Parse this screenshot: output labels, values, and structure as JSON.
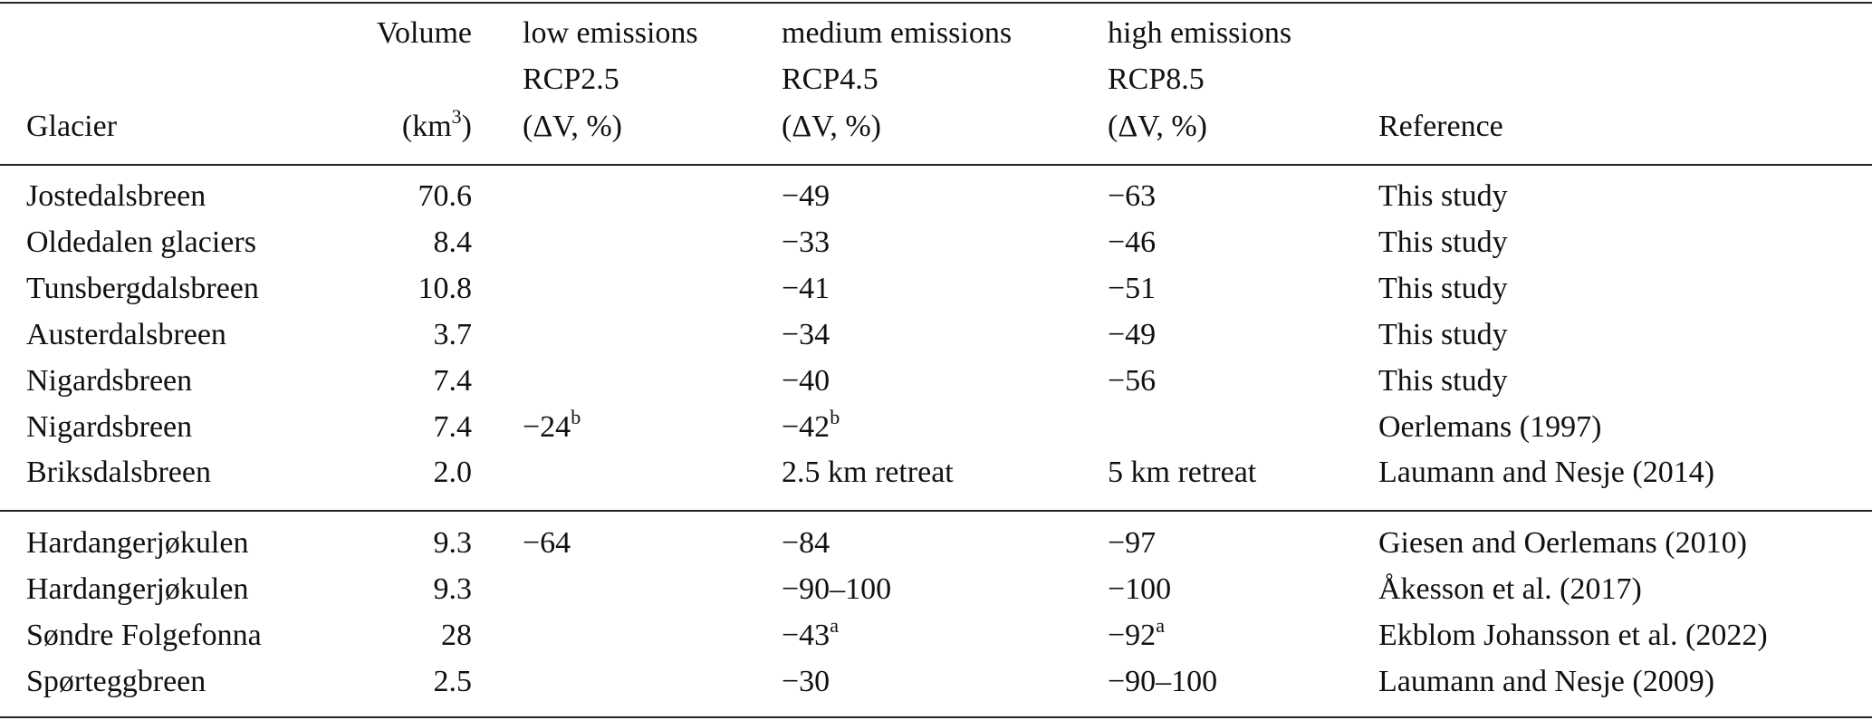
{
  "table": {
    "header": [
      [
        "Glacier"
      ],
      [
        "Volume",
        {
          "text": "(km",
          "sup": "3",
          "tail": ")"
        }
      ],
      [
        "low emissions",
        "RCP2.5",
        "(ΔV, %)"
      ],
      [
        "medium emissions",
        "RCP4.5",
        "(ΔV, %)"
      ],
      [
        "high emissions",
        "RCP8.5",
        "(ΔV, %)"
      ],
      [
        "Reference"
      ]
    ],
    "groups": [
      [
        [
          "Jostedalsbreen",
          "70.6",
          "",
          "−49",
          "−63",
          "This study"
        ],
        [
          "Oldedalen glaciers",
          "8.4",
          "",
          "−33",
          "−46",
          "This study"
        ],
        [
          "Tunsbergdalsbreen",
          "10.8",
          "",
          "−41",
          "−51",
          "This study"
        ],
        [
          "Austerdalsbreen",
          "3.7",
          "",
          "−34",
          "−49",
          "This study"
        ],
        [
          "Nigardsbreen",
          "7.4",
          "",
          "−40",
          "−56",
          "This study"
        ],
        [
          "Nigardsbreen",
          "7.4",
          {
            "text": "−24",
            "sup": "b"
          },
          {
            "text": "−42",
            "sup": "b"
          },
          "",
          "Oerlemans (1997)"
        ],
        [
          "Briksdalsbreen",
          "2.0",
          "",
          "2.5 km retreat",
          "5 km retreat",
          "Laumann and Nesje (2014)"
        ]
      ],
      [
        [
          "Hardangerjøkulen",
          "9.3",
          "−64",
          "−84",
          "−97",
          "Giesen and Oerlemans (2010)"
        ],
        [
          "Hardangerjøkulen",
          "9.3",
          "",
          "−90–100",
          "−100",
          "Åkesson et al. (2017)"
        ],
        [
          "Søndre Folgefonna",
          "28",
          "",
          {
            "text": "−43",
            "sup": "a"
          },
          {
            "text": "−92",
            "sup": "a"
          },
          "Ekblom Johansson et al. (2022)"
        ],
        [
          "Spørteggbreen",
          "2.5",
          "",
          "−30",
          "−90–100",
          "Laumann and Nesje (2009)"
        ]
      ]
    ]
  }
}
